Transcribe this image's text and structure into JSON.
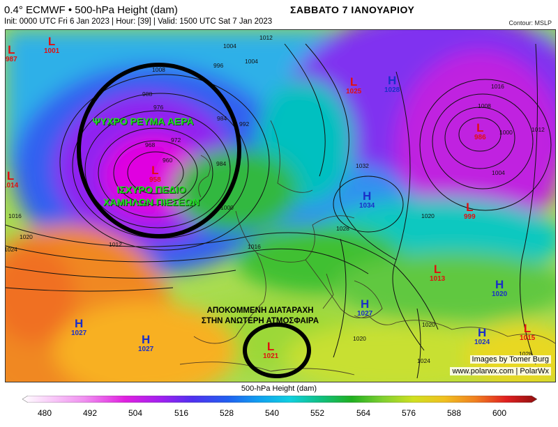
{
  "header": {
    "title": "0.4° ECMWF • 500-hPa Height (dam)",
    "init_line": "Init: 0000 UTC Fri 6 Jan 2023 | Hour: [39] | Valid: 1500 UTC Sat 7 Jan 2023",
    "date_greek": "ΣΑΒΒΑΤΟ 7 ΙΑΝΟΥΑΡΙΟΥ",
    "contour": "Contour: MSLP"
  },
  "annotations": {
    "cold_air_line1": "ΨΥΧΡΟ ΡΕΥΜΑ ΑΕΡΑ",
    "low_field_line1": "ΙΣΧΥΡΟ ΠΕΔΙΟ",
    "low_field_line2": "ΧΑΜΗΛΩΝ ΠΙΕΣΕΩΝ",
    "cutoff_line1": "ΑΠΟΚΟΜΜΕΝΗ ΔΙΑΤΑΡΑΧΗ",
    "cutoff_line2": "ΣΤΗΝ ΑΝΩΤΕΡΗ ΑΤΜΟΣΦΑΙΡΑ"
  },
  "pressure_centers": [
    {
      "sym": "L",
      "val": "987",
      "kind": "lo"
    },
    {
      "sym": "L",
      "val": "1001",
      "kind": "lo"
    },
    {
      "sym": "L",
      "val": "1025",
      "kind": "lo"
    },
    {
      "sym": "H",
      "val": "1028",
      "kind": "hi"
    },
    {
      "sym": "L",
      "val": "986",
      "kind": "lo"
    },
    {
      "sym": "L",
      "val": "958",
      "kind": "lo"
    },
    {
      "sym": "L",
      "val": "1014",
      "kind": "lo"
    },
    {
      "sym": "H",
      "val": "1034",
      "kind": "hi"
    },
    {
      "sym": "L",
      "val": "999",
      "kind": "lo"
    },
    {
      "sym": "L",
      "val": "1013",
      "kind": "lo"
    },
    {
      "sym": "H",
      "val": "1020",
      "kind": "hi"
    },
    {
      "sym": "H",
      "val": "1027",
      "kind": "hi"
    },
    {
      "sym": "H",
      "val": "1027",
      "kind": "hi"
    },
    {
      "sym": "H",
      "val": "1027",
      "kind": "hi"
    },
    {
      "sym": "L",
      "val": "1021",
      "kind": "lo"
    },
    {
      "sym": "H",
      "val": "1024",
      "kind": "hi"
    },
    {
      "sym": "L",
      "val": "1015",
      "kind": "lo"
    }
  ],
  "isobar_labels": [
    "1004",
    "1012",
    "996",
    "1004",
    "1008",
    "988",
    "976",
    "992",
    "984",
    "972",
    "968",
    "960",
    "984",
    "1000",
    "1016",
    "1020",
    "1024",
    "1012",
    "1016",
    "1032",
    "1028",
    "1016",
    "1008",
    "1000",
    "1004",
    "1012",
    "1020",
    "1020",
    "1020",
    "1024",
    "1028"
  ],
  "credits": {
    "line1": "Images by Tomer Burg",
    "line2": "www.polarwx.com | PolarWx"
  },
  "colorbar": {
    "title": "500-hPa Height (dam)",
    "ticks": [
      "480",
      "492",
      "504",
      "516",
      "528",
      "540",
      "552",
      "564",
      "576",
      "588",
      "600"
    ]
  }
}
